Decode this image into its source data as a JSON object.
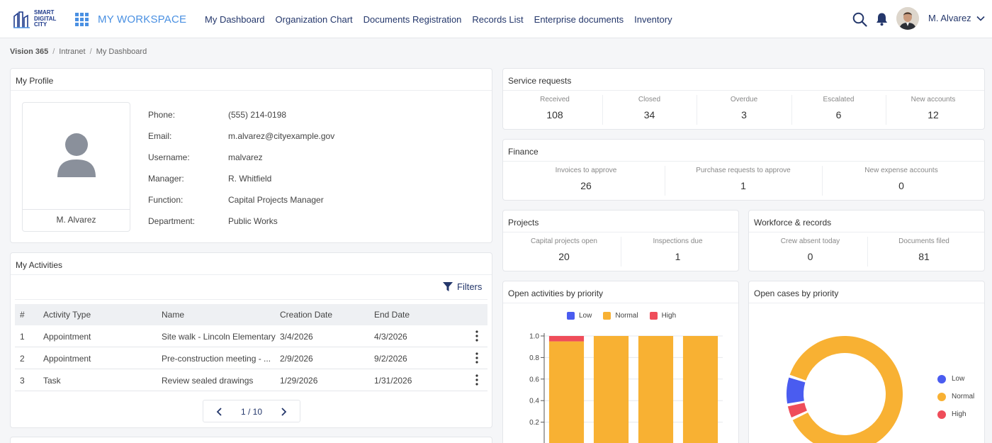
{
  "header": {
    "logo_lines": [
      "SMART",
      "DIGITAL",
      "CITY"
    ],
    "workspace": "MY WORKSPACE",
    "nav": [
      "My Dashboard",
      "Organization Chart",
      "Documents Registration",
      "Records List",
      "Enterprise documents",
      "Inventory"
    ],
    "user_name": "M. Alvarez"
  },
  "breadcrumb": [
    "Vision 365",
    "Intranet",
    "My Dashboard"
  ],
  "profile": {
    "title": "My Profile",
    "name": "M. Alvarez",
    "fields": [
      {
        "label": "Phone:",
        "value": "(555) 214-0198"
      },
      {
        "label": "Email:",
        "value": "m.alvarez@cityexample.gov"
      },
      {
        "label": "Username:",
        "value": "malvarez"
      },
      {
        "label": "Manager:",
        "value": "R. Whitfield"
      },
      {
        "label": "Function:",
        "value": "Capital Projects Manager"
      },
      {
        "label": "Department:",
        "value": "Public Works"
      }
    ]
  },
  "activities": {
    "title": "My Activities",
    "filters_label": "Filters",
    "columns": [
      "#",
      "Activity Type",
      "Name",
      "Creation Date",
      "End Date"
    ],
    "rows": [
      [
        "1",
        "Appointment",
        "Site walk - Lincoln Elementary",
        "3/4/2026",
        "4/3/2026"
      ],
      [
        "2",
        "Appointment",
        "Pre-construction meeting - ...",
        "2/9/2026",
        "9/2/2026"
      ],
      [
        "3",
        "Task",
        "Review sealed drawings",
        "1/29/2026",
        "1/31/2026"
      ]
    ],
    "pager": "1 / 10"
  },
  "service_requests": {
    "title": "Service requests",
    "stats": [
      {
        "label": "Received",
        "value": "108"
      },
      {
        "label": "Closed",
        "value": "34"
      },
      {
        "label": "Overdue",
        "value": "3"
      },
      {
        "label": "Escalated",
        "value": "6"
      },
      {
        "label": "New accounts",
        "value": "12"
      }
    ]
  },
  "finance": {
    "title": "Finance",
    "stats": [
      {
        "label": "Invoices to approve",
        "value": "26"
      },
      {
        "label": "Purchase requests to approve",
        "value": "1"
      },
      {
        "label": "New expense accounts",
        "value": "0"
      }
    ]
  },
  "projects": {
    "title": "Projects",
    "stats": [
      {
        "label": "Capital projects open",
        "value": "20"
      },
      {
        "label": "Inspections due",
        "value": "1"
      }
    ]
  },
  "workforce": {
    "title": "Workforce & records",
    "stats": [
      {
        "label": "Crew absent today",
        "value": "0"
      },
      {
        "label": "Documents filed",
        "value": "81"
      }
    ]
  },
  "colors": {
    "low": "#4a5cf0",
    "normal": "#f8b133",
    "high": "#ef4d5a",
    "accent": "#4a90e2",
    "nav": "#24376b"
  },
  "chart_data": [
    {
      "type": "bar",
      "title": "Open activities by priority",
      "stacked": true,
      "legend": "top",
      "categories": [
        "",
        "",
        "",
        ""
      ],
      "series": [
        {
          "name": "Low",
          "values": [
            0,
            0,
            0,
            0
          ]
        },
        {
          "name": "Normal",
          "values": [
            0.95,
            1.0,
            1.0,
            1.0
          ]
        },
        {
          "name": "High",
          "values": [
            0.05,
            0,
            0,
            0
          ]
        }
      ],
      "yticks": [
        "1.0",
        "0.8",
        "0.6",
        "0.4",
        "0.2"
      ],
      "ylim": [
        0,
        1.0
      ],
      "grid": true
    },
    {
      "type": "pie",
      "title": "Open cases by priority",
      "donut": true,
      "legend": "right",
      "labels": [
        "Low",
        "Normal",
        "High"
      ],
      "values": [
        8,
        88,
        4
      ]
    }
  ]
}
